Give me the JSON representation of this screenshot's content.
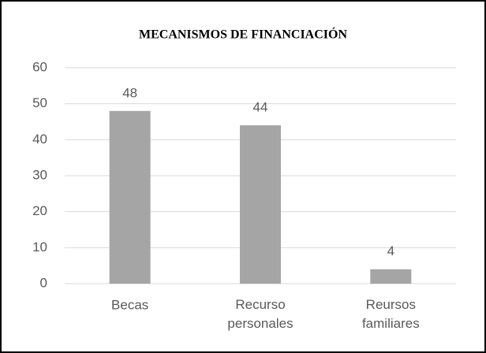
{
  "chart_data": {
    "type": "bar",
    "title": "MECANISMOS DE FINANCIACIÓN",
    "categories": [
      "Becas",
      "Recurso personales",
      "Reursos familiares"
    ],
    "values": [
      48,
      44,
      4
    ],
    "color": "#a5a5a5",
    "ylim": [
      0,
      60
    ],
    "yticks": [
      0,
      10,
      20,
      30,
      40,
      50,
      60
    ],
    "grid": true
  }
}
